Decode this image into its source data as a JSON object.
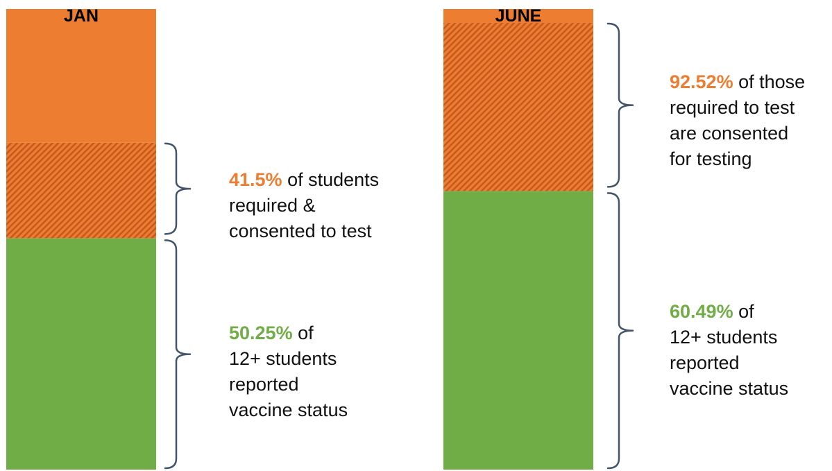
{
  "chart_data": {
    "type": "bar",
    "stacked": true,
    "categories": [
      "JAN",
      "JUNE"
    ],
    "bars": [
      {
        "title": "JAN",
        "segments": [
          {
            "part": "reported-vaccine-status",
            "value": 50.25
          },
          {
            "part": "required-and-consented",
            "value": 20.7
          },
          {
            "part": "remainder",
            "value": 29.05
          }
        ],
        "annotations": [
          {
            "percent": "41.5%",
            "percent_color": "#ED7D31",
            "lines": [
              "of students",
              "required &",
              "consented to test"
            ]
          },
          {
            "percent": "50.25%",
            "percent_color": "#70AD47",
            "lines": [
              "of",
              "12+ students",
              "reported",
              "vaccine status"
            ]
          }
        ]
      },
      {
        "title": "JUNE",
        "segments": [
          {
            "part": "reported-vaccine-status",
            "value": 60.49
          },
          {
            "part": "required-and-consented",
            "value": 36.5
          },
          {
            "part": "remainder",
            "value": 3.01
          }
        ],
        "annotations": [
          {
            "percent": "92.52%",
            "percent_color": "#ED7D31",
            "lines": [
              "of those",
              "required to test",
              "are consented",
              "for testing"
            ]
          },
          {
            "percent": "60.49%",
            "percent_color": "#70AD47",
            "lines": [
              "of",
              "12+ students",
              "reported",
              "vaccine status"
            ]
          }
        ]
      }
    ],
    "colors": {
      "green": "#70AD47",
      "orange": "#ED7D31",
      "hatch": "#C65A1E",
      "bracket": "#44546A"
    }
  }
}
